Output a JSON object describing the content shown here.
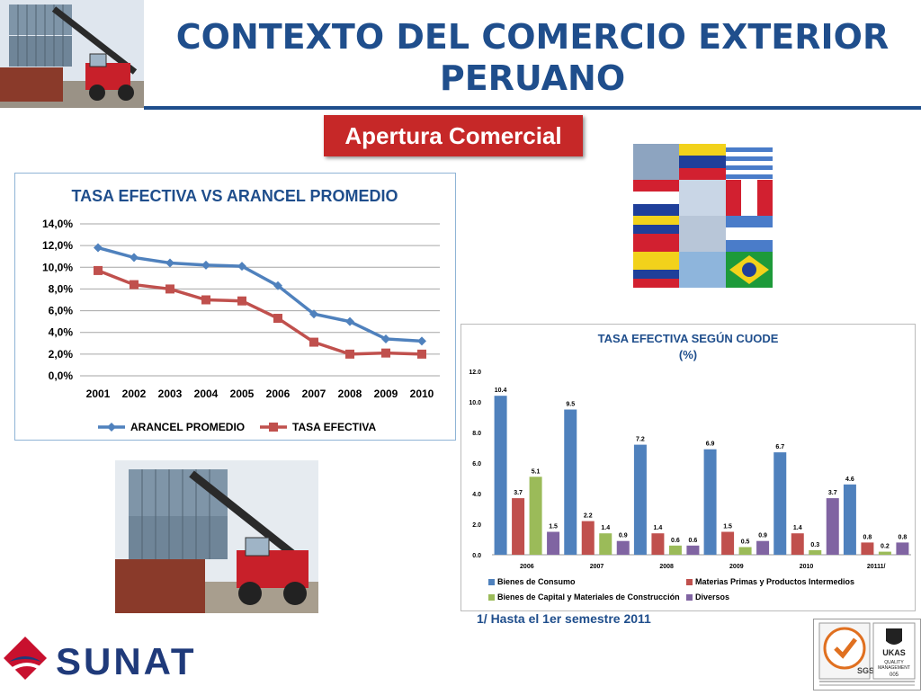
{
  "header": {
    "title_line1": "CONTEXTO DEL COMERCIO EXTERIOR",
    "title_line2": "PERUANO",
    "subtitle": "Apertura Comercial"
  },
  "footnote": "1/ Hasta el 1er semestre 2011",
  "logo": {
    "text": "SUNAT"
  },
  "cert": {
    "sgs": "SGS",
    "ukas_line1": "UKAS",
    "ukas_line2": "QUALITY",
    "ukas_line3": "MANAGEMENT",
    "code": "005"
  },
  "colors": {
    "title": "#1f4e8c",
    "subtitle_bg": "#c62828",
    "arancel": "#4f81bd",
    "tasa": "#c0504d",
    "bienes_consumo": "#4f81bd",
    "materias": "#c0504d",
    "capital": "#9bbb59",
    "diversos": "#8064a2",
    "sunat_red": "#c8102e",
    "sunat_blue": "#1f3a7a"
  },
  "chart_data": [
    {
      "type": "line",
      "title": "TASA EFECTIVA VS ARANCEL PROMEDIO",
      "x": [
        "2001",
        "2002",
        "2003",
        "2004",
        "2005",
        "2006",
        "2007",
        "2008",
        "2009",
        "2010"
      ],
      "yticks": [
        "0,0%",
        "2,0%",
        "4,0%",
        "6,0%",
        "8,0%",
        "10,0%",
        "12,0%",
        "14,0%"
      ],
      "ylim": [
        0,
        14
      ],
      "grid": true,
      "legend": "bottom",
      "series": [
        {
          "name": "ARANCEL PROMEDIO",
          "values": [
            11.8,
            10.9,
            10.4,
            10.2,
            10.1,
            8.3,
            5.7,
            5.0,
            3.4,
            3.2
          ]
        },
        {
          "name": "TASA EFECTIVA",
          "values": [
            9.7,
            8.4,
            8.0,
            7.0,
            6.9,
            5.3,
            3.1,
            2.0,
            2.1,
            2.0
          ]
        }
      ]
    },
    {
      "type": "bar",
      "title": "TASA EFECTIVA SEGÚN CUODE",
      "subtitle": "(%)",
      "categories": [
        "2006",
        "2007",
        "2008",
        "2009",
        "2010",
        "20111/"
      ],
      "yticks": [
        "0.0",
        "2.0",
        "4.0",
        "6.0",
        "8.0",
        "10.0",
        "12.0"
      ],
      "ylim": [
        0,
        12
      ],
      "legend": "bottom",
      "series": [
        {
          "name": "Bienes de Consumo",
          "values": [
            10.4,
            9.5,
            7.2,
            6.9,
            6.7,
            4.6
          ]
        },
        {
          "name": "Materias Primas y Productos Intermedios",
          "values": [
            3.7,
            2.2,
            1.4,
            1.5,
            1.4,
            0.8
          ]
        },
        {
          "name": "Bienes de Capital y Materiales de Construcción",
          "values": [
            5.1,
            1.4,
            0.6,
            0.5,
            0.3,
            0.2
          ]
        },
        {
          "name": "Diversos",
          "values": [
            1.5,
            0.9,
            0.6,
            0.9,
            3.7,
            0.8
          ]
        }
      ]
    }
  ]
}
